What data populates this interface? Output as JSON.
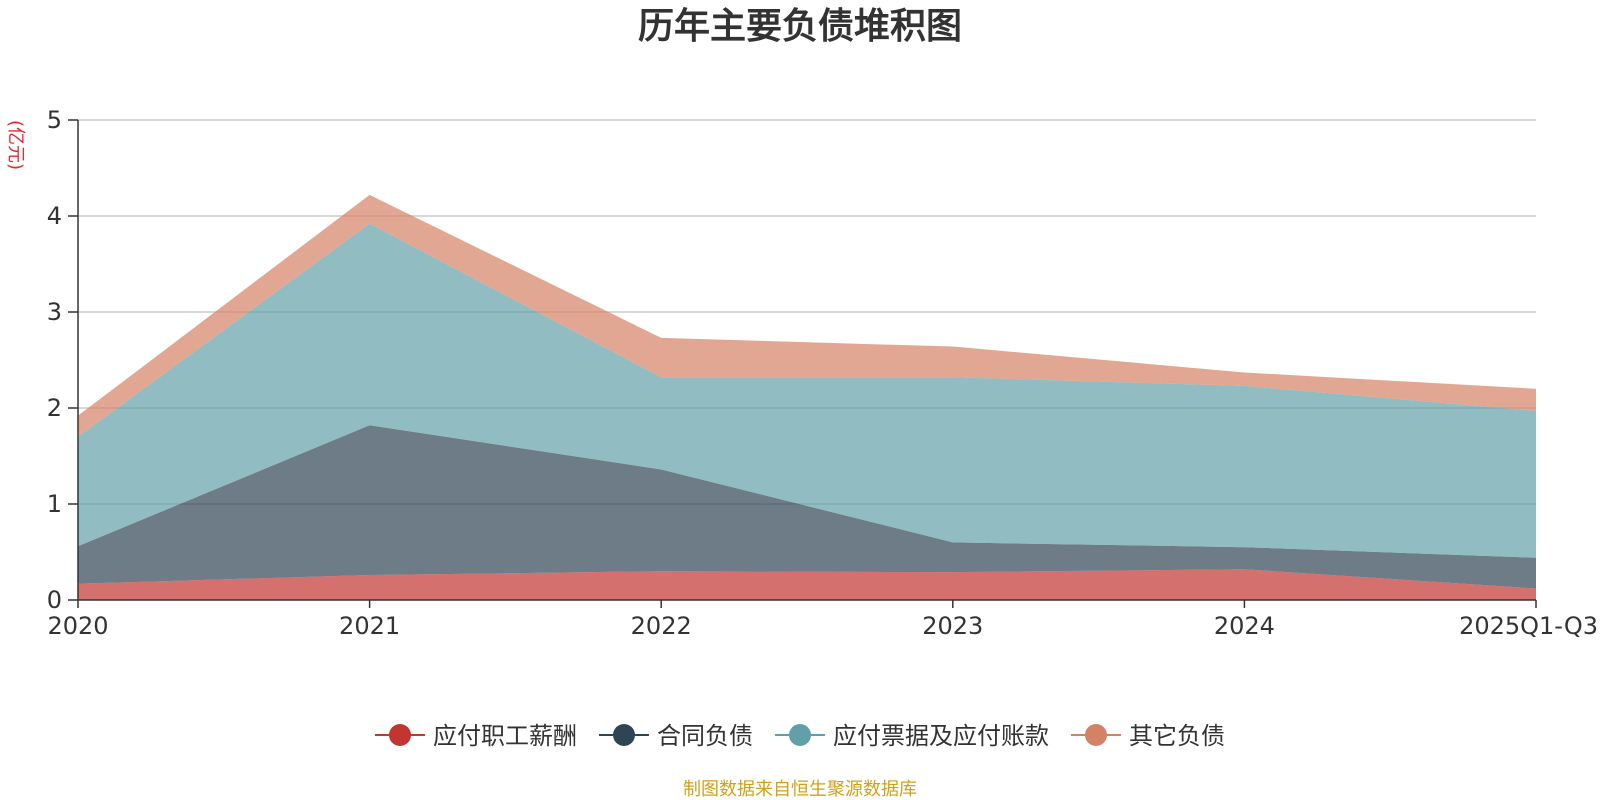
{
  "chart_data": {
    "type": "area",
    "stacked": true,
    "title": "历年主要负债堆积图",
    "ylabel": "(亿元)",
    "xlabel": "",
    "categories": [
      "2020",
      "2021",
      "2022",
      "2023",
      "2024",
      "2025Q1-Q3"
    ],
    "ylim": [
      0,
      5
    ],
    "yticks": [
      "0",
      "1",
      "2",
      "3",
      "4",
      "5"
    ],
    "grid": true,
    "legend_position": "bottom",
    "series": [
      {
        "name": "应付职工薪酬",
        "color": "#c23531",
        "marker_color": "#c23531",
        "values": [
          0.17,
          0.26,
          0.3,
          0.29,
          0.32,
          0.12
        ]
      },
      {
        "name": "合同负债",
        "color": "#2f4554",
        "marker_color": "#2f4554",
        "values": [
          0.39,
          1.56,
          1.06,
          0.31,
          0.23,
          0.32
        ]
      },
      {
        "name": "应付票据及应付账款",
        "color": "#61a0a8",
        "marker_color": "#61a0a8",
        "values": [
          1.14,
          2.1,
          0.96,
          1.72,
          1.68,
          1.53
        ]
      },
      {
        "name": "其它负债",
        "color": "#d48265",
        "marker_color": "#d48265",
        "values": [
          0.22,
          0.3,
          0.41,
          0.32,
          0.14,
          0.23
        ]
      }
    ],
    "source": "制图数据来自恒生聚源数据库",
    "colors": {
      "unit_label": "#e8262b",
      "source": "#d4a017",
      "axis": "#333333",
      "grid": "#cccccc"
    }
  }
}
